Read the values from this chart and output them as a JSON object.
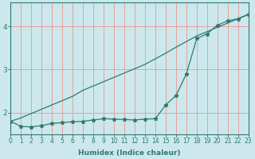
{
  "xlabel": "Humidex (Indice chaleur)",
  "background_color": "#cce8ec",
  "line_color": "#2d7a6e",
  "grid_color": "#e8a0a0",
  "x_values": [
    0,
    1,
    2,
    3,
    4,
    5,
    6,
    7,
    8,
    9,
    10,
    11,
    12,
    13,
    14,
    15,
    16,
    17,
    18,
    19,
    20,
    21,
    22,
    23
  ],
  "line1_y": [
    1.8,
    1.68,
    1.67,
    1.7,
    1.75,
    1.77,
    1.79,
    1.8,
    1.83,
    1.86,
    1.85,
    1.84,
    1.83,
    1.85,
    1.86,
    2.18,
    2.4,
    2.9,
    3.72,
    3.83,
    4.03,
    4.13,
    4.18,
    4.28
  ],
  "line2_y": [
    1.8,
    1.88,
    1.98,
    2.08,
    2.18,
    2.28,
    2.38,
    2.52,
    2.62,
    2.72,
    2.82,
    2.92,
    3.02,
    3.12,
    3.25,
    3.38,
    3.52,
    3.65,
    3.78,
    3.88,
    3.98,
    4.08,
    4.18,
    4.28
  ],
  "ylim": [
    1.5,
    4.55
  ],
  "xlim": [
    0,
    23
  ],
  "yticks": [
    2,
    3,
    4
  ],
  "xticks": [
    0,
    1,
    2,
    3,
    4,
    5,
    6,
    7,
    8,
    9,
    10,
    11,
    12,
    13,
    14,
    15,
    16,
    17,
    18,
    19,
    20,
    21,
    22,
    23
  ],
  "xlabel_fontsize": 6.5,
  "tick_fontsize": 5.5,
  "ytick_fontsize": 6.5
}
